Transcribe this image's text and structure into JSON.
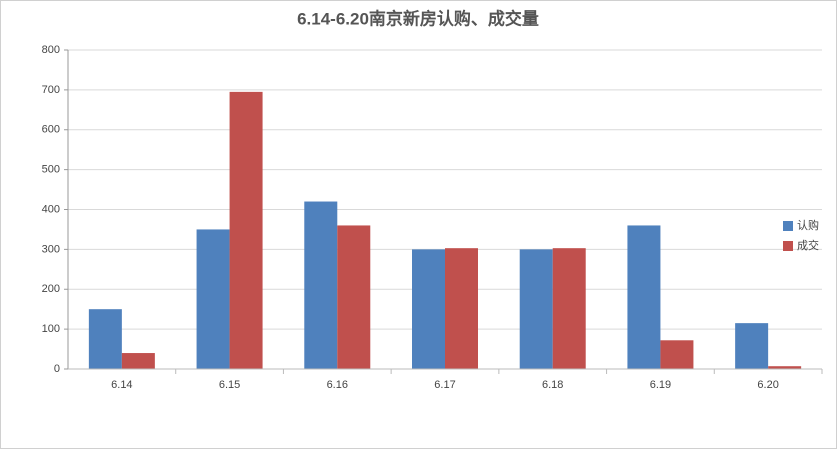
{
  "chart_data": {
    "type": "bar",
    "title": "6.14-6.20南京新房认购、成交量",
    "categories": [
      "6.14",
      "6.15",
      "6.16",
      "6.17",
      "6.18",
      "6.19",
      "6.20"
    ],
    "series": [
      {
        "name": "认购",
        "color": "#4f81bd",
        "values": [
          150,
          350,
          420,
          300,
          300,
          360,
          115
        ]
      },
      {
        "name": "成交",
        "color": "#c0504d",
        "values": [
          40,
          695,
          360,
          303,
          303,
          72,
          7
        ]
      }
    ],
    "ylim": [
      0,
      800
    ],
    "yticks": [
      0,
      100,
      200,
      300,
      400,
      500,
      600,
      700,
      800
    ],
    "grid": true,
    "legend": "right"
  }
}
